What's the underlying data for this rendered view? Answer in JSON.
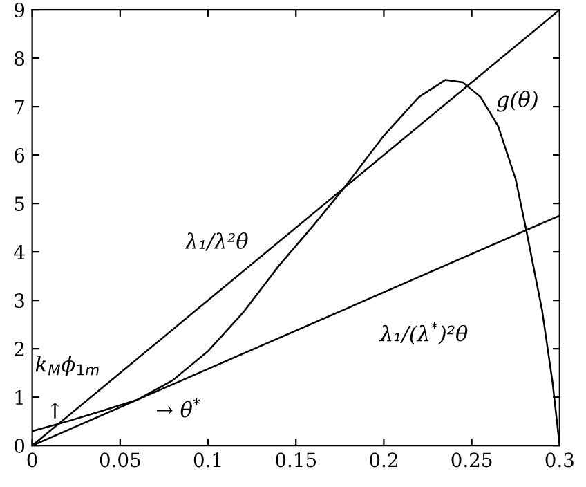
{
  "chart_data": {
    "type": "line",
    "series": [
      {
        "color": "#000000",
        "x": [
          0,
          0.3
        ],
        "values": [
          0,
          9
        ]
      },
      {
        "color": "#000000",
        "x": [
          0,
          0.3
        ],
        "values": [
          0,
          4.75
        ]
      },
      {
        "color": "#000000",
        "x": [
          0,
          0.02,
          0.04,
          0.06,
          0.08,
          0.1,
          0.12,
          0.14,
          0.16,
          0.178,
          0.2,
          0.22,
          0.235,
          0.245,
          0.255,
          0.265,
          0.275,
          0.281,
          0.29,
          0.296,
          0.3
        ],
        "values": [
          0.3,
          0.5,
          0.72,
          0.95,
          1.35,
          1.95,
          2.75,
          3.7,
          4.55,
          5.35,
          6.4,
          7.2,
          7.55,
          7.5,
          7.2,
          6.6,
          5.5,
          4.45,
          2.8,
          1.3,
          0
        ]
      }
    ],
    "xlim": [
      0,
      0.3
    ],
    "ylim": [
      0,
      9
    ],
    "xticks": [
      0,
      0.05,
      0.1,
      0.15,
      0.2,
      0.25,
      0.3
    ],
    "yticks": [
      0,
      1,
      2,
      3,
      4,
      5,
      6,
      7,
      8,
      9
    ],
    "grid": false,
    "legend": false,
    "marker": "none",
    "line_style": "solid",
    "annotations": [
      "g(θ)",
      "λ₁/λ²θ",
      "λ₁/(λ$^{*}$)²θ",
      "k$_{M}$ϕ$_{1m}$",
      "↑",
      "→ θ$^{*}$"
    ]
  }
}
